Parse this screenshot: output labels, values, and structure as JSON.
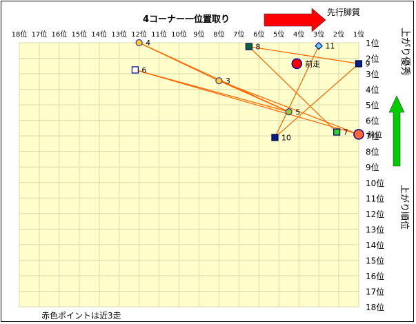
{
  "chart_data": {
    "type": "scatter",
    "title": "4コーナー一位置取り",
    "arrow_right_label": "先行脚質",
    "arrow_up_label": "上がり優秀",
    "ylabel": "上がり順位",
    "footnote": "赤色ポイントは近3走",
    "x_ticks": [
      "18位",
      "17位",
      "16位",
      "15位",
      "14位",
      "13位",
      "12位",
      "11位",
      "10位",
      "9位",
      "8位",
      "7位",
      "6位",
      "5位",
      "4位",
      "3位",
      "2位",
      "1位"
    ],
    "y_ticks": [
      "1位",
      "2位",
      "3位",
      "4位",
      "5位",
      "6位",
      "7位",
      "8位",
      "9位",
      "10位",
      "11位",
      "12位",
      "13位",
      "14位",
      "15位",
      "16位",
      "17位",
      "18位"
    ],
    "xlim": [
      18,
      1
    ],
    "ylim": [
      1,
      18
    ],
    "grid": true,
    "colors": {
      "plot_bg": "#ffffcc",
      "grid": "#d8d8a8",
      "line": "#ff6600",
      "arrow_red": "#ff0000",
      "arrow_green": "#00cc00"
    },
    "points": [
      {
        "label": "4",
        "x": 12.0,
        "y": 1.0,
        "marker": "circle",
        "fill": "#ffcc33",
        "stroke": "#333399"
      },
      {
        "label": "8",
        "x": 6.5,
        "y": 1.25,
        "marker": "square",
        "fill": "#006633",
        "stroke": "#000066"
      },
      {
        "label": "11",
        "x": 3.0,
        "y": 1.2,
        "marker": "diamond",
        "fill": "#66ccff",
        "stroke": "#000099"
      },
      {
        "label": "9",
        "x": 1.0,
        "y": 2.35,
        "marker": "square",
        "fill": "#002288",
        "stroke": "#000044"
      },
      {
        "label": "前走",
        "x": 4.1,
        "y": 2.35,
        "marker": "circle-big",
        "fill": "#ff0000",
        "stroke": "#000099"
      },
      {
        "label": "6",
        "x": 12.2,
        "y": 2.75,
        "marker": "square",
        "fill": "#ffffff",
        "stroke": "#000099"
      },
      {
        "label": "3",
        "x": 8.0,
        "y": 3.45,
        "marker": "circle",
        "fill": "#ffcc33",
        "stroke": "#333399"
      },
      {
        "label": "5",
        "x": 4.5,
        "y": 5.45,
        "marker": "circle",
        "fill": "#99cc33",
        "stroke": "#333399"
      },
      {
        "label": "7",
        "x": 2.1,
        "y": 6.75,
        "marker": "square",
        "fill": "#33cc33",
        "stroke": "#000066"
      },
      {
        "label": "前位",
        "x": 1.0,
        "y": 6.9,
        "marker": "circle-big",
        "fill": "#ff6633",
        "stroke": "#000099"
      },
      {
        "label": "10",
        "x": 5.2,
        "y": 7.1,
        "marker": "square",
        "fill": "#002288",
        "stroke": "#000044"
      }
    ],
    "lines": [
      {
        "from": "4",
        "to": "5"
      },
      {
        "from": "4",
        "to": "3"
      },
      {
        "from": "6",
        "to": "5"
      },
      {
        "from": "6",
        "to": "前位"
      },
      {
        "from": "3",
        "to": "前位"
      },
      {
        "from": "8",
        "to": "7"
      },
      {
        "from": "8",
        "to": "9"
      },
      {
        "from": "11",
        "to": "10"
      },
      {
        "from": "9",
        "to": "10"
      },
      {
        "from": "3",
        "to": "5"
      }
    ]
  }
}
